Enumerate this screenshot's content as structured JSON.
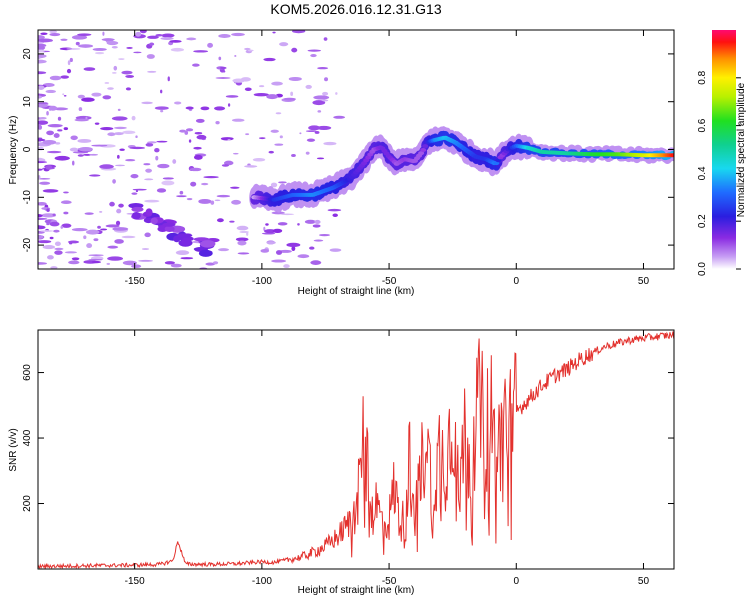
{
  "title": "KOM5.2026.016.12.31.G13",
  "chart_data": [
    {
      "type": "heatmap",
      "xlabel": "Height of straight line (km)",
      "ylabel": "Frequency (Hz)",
      "xlim": [
        -188,
        62
      ],
      "ylim": [
        -25,
        25
      ],
      "xticks": [
        "-150",
        "-100",
        "-50",
        "0",
        "50"
      ],
      "xtick_values": [
        -150,
        -100,
        -50,
        0,
        50
      ],
      "yticks": [
        "-20",
        "-10",
        "0",
        "10",
        "20"
      ],
      "ytick_values": [
        -20,
        -10,
        0,
        10,
        20
      ],
      "colorbar": {
        "label": "Normalized spectral amplitude",
        "ticks": [
          "0.0",
          "0.2",
          "0.4",
          "0.6",
          "0.8"
        ],
        "tick_values": [
          0.0,
          0.2,
          0.4,
          0.6,
          0.8
        ],
        "range": [
          0,
          1
        ]
      },
      "ridge": {
        "x": [
          -103,
          -95,
          -88,
          -80,
          -72,
          -65,
          -60,
          -56,
          -53,
          -50,
          -47,
          -44,
          -40,
          -37,
          -35,
          -32,
          -28,
          -24,
          -20,
          -16,
          -12,
          -8,
          -6,
          -3,
          0,
          5,
          10,
          20,
          30,
          40,
          50,
          62
        ],
        "y": [
          -10,
          -10.5,
          -9.5,
          -9.5,
          -8,
          -6,
          -3,
          0,
          0.5,
          -1.5,
          -3,
          -2,
          -2.5,
          -0.5,
          1.5,
          2,
          2.5,
          1.5,
          0,
          -1.5,
          -2,
          -3,
          -1.5,
          0,
          0.8,
          0.3,
          -0.5,
          -0.8,
          -1,
          -1,
          -1.2,
          -1.2
        ],
        "amp": [
          0.05,
          0.25,
          0.3,
          0.35,
          0.3,
          0.2,
          0.15,
          0.1,
          0.15,
          0.15,
          0.1,
          0.12,
          0.1,
          0.1,
          0.2,
          0.35,
          0.4,
          0.35,
          0.3,
          0.25,
          0.25,
          0.35,
          0.1,
          0.2,
          0.3,
          0.45,
          0.5,
          0.5,
          0.6,
          0.65,
          0.75,
          0.95
        ]
      }
    },
    {
      "type": "line",
      "xlabel": "Height of straight line (km)",
      "ylabel": "SNR (v/v)",
      "xlim": [
        -188,
        62
      ],
      "ylim": [
        0,
        730
      ],
      "xticks": [
        "-150",
        "-100",
        "-50",
        "0",
        "50"
      ],
      "xtick_values": [
        -150,
        -100,
        -50,
        0,
        50
      ],
      "yticks": [
        "200",
        "400",
        "600"
      ],
      "ytick_values": [
        200,
        400,
        600
      ],
      "color": "#e3312d",
      "series": [
        {
          "name": "SNR",
          "x": [
            -188,
            -170,
            -150,
            -140,
            -135,
            -133,
            -130,
            -120,
            -110,
            -100,
            -95,
            -90,
            -85,
            -80,
            -75,
            -70,
            -65,
            -62,
            -60,
            -57,
            -55,
            -52,
            -50,
            -48,
            -45,
            -42,
            -40,
            -38,
            -35,
            -33,
            -30,
            -28,
            -26,
            -24,
            -22,
            -20,
            -18,
            -16,
            -14,
            -12,
            -10,
            -8,
            -6,
            -4,
            -2,
            0,
            5,
            10,
            15,
            20,
            25,
            30,
            35,
            40,
            45,
            50,
            55,
            62
          ],
          "y": [
            8,
            10,
            12,
            14,
            25,
            85,
            15,
            14,
            16,
            22,
            20,
            28,
            35,
            50,
            70,
            100,
            150,
            250,
            420,
            170,
            200,
            130,
            150,
            250,
            120,
            330,
            160,
            280,
            420,
            200,
            380,
            300,
            420,
            480,
            250,
            430,
            300,
            460,
            500,
            380,
            540,
            300,
            430,
            460,
            440,
            480,
            520,
            560,
            590,
            610,
            640,
            660,
            680,
            690,
            700,
            705,
            710,
            715
          ]
        }
      ]
    }
  ]
}
